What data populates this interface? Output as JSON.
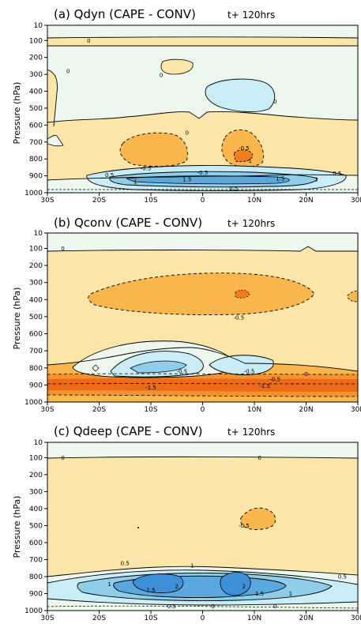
{
  "chart_data": [
    {
      "type": "contour",
      "title": "(a) Qdyn (CAPE - CONV)",
      "time_label": "t+ 120hrs",
      "ylabel": "Pressure (hPa)",
      "x_ticks": [
        "30S",
        "20S",
        "10S",
        "0",
        "10N",
        "20N",
        "30N"
      ],
      "x_range": [
        -30,
        30
      ],
      "y_ticks": [
        10,
        100,
        200,
        300,
        400,
        500,
        600,
        700,
        800,
        900,
        1000
      ],
      "y_range": [
        10,
        1000
      ],
      "colors": {
        "pos_light": "#fce5a8",
        "pos_mid": "#f9b64d",
        "pos_strong": "#f07e1d",
        "neg_light": "#eef7ee",
        "neg_mid": "#c9ecf6",
        "neg_strong": "#3d8fd6"
      },
      "regions": [
        {
          "level": "0 to 0.5",
          "lon": [
            -30,
            30
          ],
          "p": [
            600,
            850
          ]
        },
        {
          "level": "0.5 to 1",
          "lon": [
            -17,
            -3
          ],
          "p": [
            700,
            850
          ]
        },
        {
          "level": "0.5 to 1",
          "lon": [
            3,
            12
          ],
          "p": [
            680,
            830
          ]
        },
        {
          "level": "1 to 1.5",
          "lon": [
            5,
            11
          ],
          "p": [
            780,
            830
          ]
        },
        {
          "level": "-0.5 to 0",
          "lon": [
            2,
            19
          ],
          "p": [
            340,
            560
          ]
        },
        {
          "level": "0 to 0.5",
          "lon": [
            -13,
            -7
          ],
          "p": [
            240,
            330
          ]
        },
        {
          "level": "-0.5",
          "lon": [
            -20,
            26
          ],
          "p": [
            870,
            980
          ]
        },
        {
          "level": "-1",
          "lon": [
            -15,
            17
          ],
          "p": [
            885,
            960
          ]
        },
        {
          "level": "-1.5",
          "lon": [
            -12,
            11
          ],
          "p": [
            900,
            945
          ]
        }
      ],
      "contour_labels": [
        {
          "text": "0",
          "lon": -22,
          "p": 100
        },
        {
          "text": "0",
          "lon": -26,
          "p": 280
        },
        {
          "text": "0",
          "lon": -8,
          "p": 305
        },
        {
          "text": "0",
          "lon": 14,
          "p": 460
        },
        {
          "text": "0",
          "lon": -3,
          "p": 645
        },
        {
          "text": "-0.5",
          "lon": 8,
          "p": 735
        },
        {
          "text": "-1",
          "lon": 9,
          "p": 810
        },
        {
          "text": "-0.5",
          "lon": -11,
          "p": 855
        },
        {
          "text": "0.5",
          "lon": -18,
          "p": 895
        },
        {
          "text": "1",
          "lon": -13,
          "p": 935
        },
        {
          "text": "1.5",
          "lon": -3,
          "p": 920
        },
        {
          "text": "1.5",
          "lon": 15,
          "p": 915
        },
        {
          "text": "1",
          "lon": 22,
          "p": 920
        },
        {
          "text": "0.5",
          "lon": 26,
          "p": 885
        },
        {
          "text": "0.5",
          "lon": 6,
          "p": 975
        },
        {
          "text": "-0.5",
          "lon": 0,
          "p": 880
        }
      ]
    },
    {
      "type": "contour",
      "title": "(b) Qconv (CAPE - CONV)",
      "time_label": "t+ 120hrs",
      "ylabel": "Pressure (hPa)",
      "x_ticks": [
        "30S",
        "20S",
        "10S",
        "0",
        "10N",
        "20N",
        "30N"
      ],
      "x_range": [
        -30,
        30
      ],
      "y_ticks": [
        10,
        100,
        200,
        300,
        400,
        500,
        600,
        700,
        800,
        900,
        1000
      ],
      "y_range": [
        10,
        1000
      ],
      "regions": [
        {
          "level": "0 to 0.5",
          "lon": [
            -30,
            30
          ],
          "p": [
            110,
            660
          ]
        },
        {
          "level": "0.5 to 1",
          "lon": [
            -18,
            17
          ],
          "p": [
            400,
            590
          ]
        },
        {
          "level": "0.5",
          "lon": [
            -30,
            30
          ],
          "p": [
            850,
            1000
          ]
        },
        {
          "level": "1.5 to 2",
          "lon": [
            -30,
            30
          ],
          "p": [
            880,
            960
          ]
        },
        {
          "level": "-0.5",
          "lon": [
            -14,
            2
          ],
          "p": [
            740,
            860
          ]
        },
        {
          "level": "-0.5",
          "lon": [
            2,
            13
          ],
          "p": [
            760,
            850
          ]
        },
        {
          "level": "-1",
          "lon": [
            -3,
            5
          ],
          "p": [
            810,
            850
          ]
        }
      ],
      "contour_labels": [
        {
          "text": "0",
          "lon": -27,
          "p": 100
        },
        {
          "text": "-0.5",
          "lon": 7,
          "p": 505
        },
        {
          "text": "-0.5",
          "lon": -4,
          "p": 820
        },
        {
          "text": "-0.5",
          "lon": 9,
          "p": 820
        },
        {
          "text": "0",
          "lon": 20,
          "p": 835
        },
        {
          "text": "-0.5",
          "lon": 14,
          "p": 865
        },
        {
          "text": "-1.5",
          "lon": -10,
          "p": 915
        },
        {
          "text": "-1.5",
          "lon": 12,
          "p": 905
        }
      ]
    },
    {
      "type": "contour",
      "title": "(c) Qdeep (CAPE - CONV)",
      "time_label": "t+ 120hrs",
      "ylabel": "Pressure (hPa)",
      "x_ticks": [
        "30S",
        "20S",
        "10S",
        "0",
        "10N",
        "20N",
        "30N"
      ],
      "x_range": [
        -30,
        30
      ],
      "y_ticks": [
        10,
        100,
        200,
        300,
        400,
        500,
        600,
        700,
        800,
        900,
        1000
      ],
      "y_range": [
        10,
        1000
      ],
      "regions": [
        {
          "level": "0 to 0.5",
          "lon": [
            -30,
            30
          ],
          "p": [
            110,
            700
          ]
        },
        {
          "level": "0.5 to 1",
          "lon": [
            4,
            12
          ],
          "p": [
            410,
            540
          ]
        },
        {
          "level": "-0.5",
          "lon": [
            -30,
            30
          ],
          "p": [
            690,
            970
          ]
        },
        {
          "level": "-1",
          "lon": [
            -24,
            21
          ],
          "p": [
            730,
            960
          ]
        },
        {
          "level": "-1.5",
          "lon": [
            -16,
            12
          ],
          "p": [
            760,
            930
          ]
        },
        {
          "level": "-2",
          "lon": [
            -12,
            -3
          ],
          "p": [
            780,
            880
          ]
        },
        {
          "level": "-2",
          "lon": [
            3,
            10
          ],
          "p": [
            770,
            900
          ]
        }
      ],
      "contour_labels": [
        {
          "text": "0",
          "lon": -27,
          "p": 100
        },
        {
          "text": "0",
          "lon": 11,
          "p": 100
        },
        {
          "text": "-0.5",
          "lon": 8,
          "p": 500
        },
        {
          "text": "0.5",
          "lon": -15,
          "p": 720
        },
        {
          "text": "1",
          "lon": -2,
          "p": 735
        },
        {
          "text": "0.5",
          "lon": 27,
          "p": 800
        },
        {
          "text": "1",
          "lon": -18,
          "p": 845
        },
        {
          "text": "1.5",
          "lon": -10,
          "p": 880
        },
        {
          "text": "2",
          "lon": -5,
          "p": 855
        },
        {
          "text": "2",
          "lon": 8,
          "p": 855
        },
        {
          "text": "1.5",
          "lon": 11,
          "p": 900
        },
        {
          "text": "1",
          "lon": 17,
          "p": 900
        },
        {
          "text": "0.5",
          "lon": -6,
          "p": 975
        },
        {
          "text": "0",
          "lon": 2,
          "p": 975
        },
        {
          "text": "0",
          "lon": 14,
          "p": 975
        }
      ]
    }
  ]
}
